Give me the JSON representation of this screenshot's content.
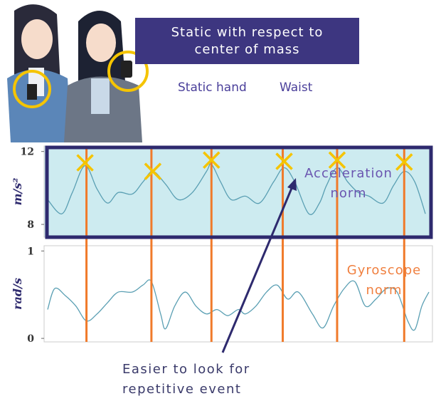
{
  "illustration": {
    "title": "Static with respect to center of mass",
    "labels": [
      "Static hand",
      "Waist"
    ]
  },
  "annotation": "Easier to look for repetitive event",
  "chart_data": [
    {
      "type": "line",
      "ylabel": "m/s²",
      "note": "Acceleration norm",
      "note_color": "#6a55b0",
      "xlim": [
        0,
        110
      ],
      "ylim": [
        7.3,
        12.3
      ],
      "yticks": [
        8,
        12
      ],
      "background": "#cdebf0",
      "frame_color": "#2e2a6e",
      "events": [
        12,
        30.4,
        47.4,
        67.6,
        83,
        102
      ],
      "event_color": "#f07a2a",
      "series": [
        {
          "color": "#5a9fb3",
          "x": [
            1,
            5,
            8,
            11.6,
            15,
            18,
            21,
            25,
            28,
            30.8,
            34.4,
            38,
            42,
            46,
            47.4,
            50,
            53,
            57,
            61,
            65,
            68,
            71,
            75,
            78,
            80,
            83,
            86,
            89,
            92,
            96,
            99,
            102,
            105,
            108
          ],
          "values": [
            9.36,
            8.58,
            9.75,
            11.22,
            9.94,
            9.17,
            9.75,
            9.67,
            10.33,
            10.91,
            10.21,
            9.36,
            9.75,
            10.91,
            11.3,
            10.33,
            9.36,
            9.55,
            9.17,
            10.33,
            11.11,
            10.33,
            8.58,
            9.17,
            10.14,
            11.11,
            10.33,
            9.75,
            9.55,
            9.17,
            10.14,
            10.91,
            10.33,
            8.58
          ]
        },
        {
          "type": "scatter",
          "color": "#f5c400",
          "x": [
            11.6,
            30.8,
            47.4,
            68,
            83,
            102
          ],
          "values": [
            11.38,
            10.91,
            11.53,
            11.46,
            11.53,
            11.42
          ]
        }
      ]
    },
    {
      "type": "line",
      "ylabel": "rad/s",
      "note": "Gyroscope norm",
      "note_color": "#f08040",
      "xlim": [
        0,
        110
      ],
      "ylim": [
        -0.04,
        1.06
      ],
      "yticks": [
        0,
        1
      ],
      "series": [
        {
          "color": "#5a9fb3",
          "x": [
            1,
            3,
            6,
            9,
            12,
            15,
            18,
            21,
            25,
            28,
            30.4,
            33,
            34.4,
            37,
            40,
            43,
            46,
            49,
            52,
            55,
            57,
            60,
            63,
            66,
            69,
            72,
            76,
            79,
            82,
            85,
            88,
            91,
            94,
            97,
            100,
            103,
            105,
            107,
            109
          ],
          "values": [
            0.33,
            0.57,
            0.49,
            0.37,
            0.2,
            0.28,
            0.41,
            0.53,
            0.53,
            0.61,
            0.65,
            0.28,
            0.11,
            0.37,
            0.53,
            0.37,
            0.28,
            0.33,
            0.26,
            0.33,
            0.28,
            0.37,
            0.53,
            0.61,
            0.45,
            0.53,
            0.28,
            0.12,
            0.37,
            0.57,
            0.65,
            0.37,
            0.45,
            0.57,
            0.53,
            0.2,
            0.1,
            0.37,
            0.53
          ]
        }
      ]
    }
  ]
}
